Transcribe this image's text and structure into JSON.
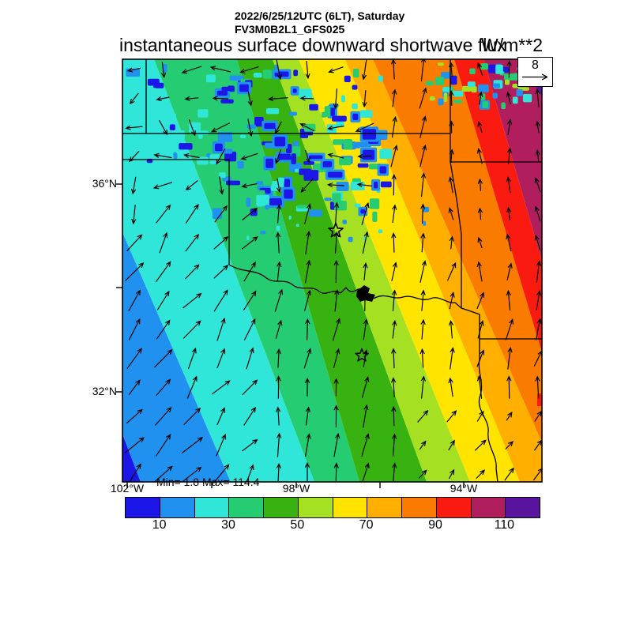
{
  "header": {
    "datetime": "2022/6/25/12UTC (6LT), Saturday",
    "model": "FV3M0B2L1_GFS025",
    "title": "instantaneous surface downward shortwave flux",
    "units": "W/m**2"
  },
  "wind_legend": {
    "reference_value": "8"
  },
  "stats": {
    "minmax": "Min= 1.8 Max= 114.4"
  },
  "axes": {
    "lat": [
      "36°N",
      "32°N"
    ],
    "lon": [
      "102°W",
      "98°W",
      "94°W"
    ]
  },
  "colorbar": {
    "tick_labels": [
      "10",
      "30",
      "50",
      "70",
      "90",
      "110"
    ],
    "colors": [
      "#1c17e6",
      "#2191f0",
      "#30e6d8",
      "#26cc71",
      "#38b211",
      "#a6e022",
      "#ffe400",
      "#ffaf00",
      "#f97c00",
      "#fa1b10",
      "#b01e5e",
      "#59149e"
    ]
  },
  "chart_data": {
    "type": "heatmap",
    "subtype": "filled-contour-map-with-wind-vectors",
    "title": "instantaneous surface downward shortwave flux",
    "units": "W/m**2",
    "valid_time": "2022/6/25/12UTC (6LT), Saturday",
    "model_run": "FV3M0B2L1_GFS025",
    "min": 1.8,
    "max": 114.4,
    "contour_levels": [
      10,
      20,
      30,
      40,
      50,
      60,
      70,
      80,
      90,
      100,
      110
    ],
    "level_colors": [
      "#1c17e6",
      "#2191f0",
      "#30e6d8",
      "#26cc71",
      "#38b211",
      "#a6e022",
      "#ffe400",
      "#ffaf00",
      "#f97c00",
      "#fa1b10",
      "#b01e5e",
      "#59149e"
    ],
    "wind_reference_value": 8,
    "lon_ticks": [
      "102°W",
      "100°W",
      "98°W",
      "96°W",
      "94°W"
    ],
    "lat_ticks": [
      "36°N",
      "34°N",
      "32°N"
    ],
    "labeled_lon_ticks": [
      "102°W",
      "98°W",
      "94°W"
    ],
    "labeled_lat_ticks": [
      "36°N",
      "32°N"
    ],
    "region": "Oklahoma / north Texas / Kansas / Arkansas",
    "pattern": "flux increases from ~10 W/m**2 (blue) in the southwest to >100 W/m**2 (crimson) in the northeast in diagonal bands; speckled blue cloud patches of low flux across the northern third; wind vectors mostly northward",
    "markers": [
      "open star near 97.1W 35.1N",
      "open star near 96.4W 32.7N"
    ]
  }
}
